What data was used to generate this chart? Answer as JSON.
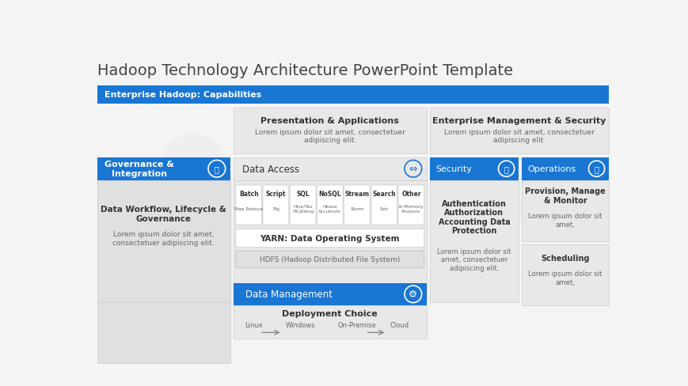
{
  "title": "Hadoop Technology Architecture PowerPoint Template",
  "blue": "#1976D2",
  "white": "#ffffff",
  "light_gray": "#e6e6e6",
  "text_dark": "#333333",
  "text_med": "#666666",
  "bg": "#f8f8f8",
  "top_bar_label": "Enterprise Hadoop: Capabilities",
  "pres_title": "Presentation & Applications",
  "pres_body": "Lorem ipsum dolor sit amet, consectetuer\nadipiscing elit.",
  "ent_title": "Enterprise Management & Security",
  "ent_body": "Lorem ipsum dolor sit amet, consectetuer\nadipiscing elit.",
  "gov_header": "Governance &\nIntegration",
  "gov_body_title": "Data Workflow, Lifecycle &\nGovernance",
  "gov_body_text": "Lorem ipsum dolor sit amet,\nconsectetuer adipiscing elit.",
  "da_header": "Data Access",
  "data_items": [
    {
      "title": "Batch",
      "sub": "Map Reduce"
    },
    {
      "title": "Script",
      "sub": "Pig"
    },
    {
      "title": "SQL",
      "sub": "Hive/Tez\nHCatalog"
    },
    {
      "title": "NoSQL",
      "sub": "Hbase\nAccumulo"
    },
    {
      "title": "Stream",
      "sub": "Storm"
    },
    {
      "title": "Search",
      "sub": "Solr"
    },
    {
      "title": "Other",
      "sub": "In-Memory\nAnalysis"
    }
  ],
  "yarn_label": "YARN: Data Operating System",
  "hdfs_label": "HDFS (Hadoop Distributed File System)",
  "dm_label": "Data Management",
  "sec_header": "Security",
  "sec_body_title": "Authentication\nAuthorization\nAccounting Data\nProtection",
  "sec_body_text": "Lorem ipsum dolor sit\namet, consectetuer\nadipiscing elit.",
  "ops_header": "Operations",
  "ops_item1_title": "Provision, Manage\n& Monitor",
  "ops_item1_text": "Lorem ipsum dolor sit\namet,",
  "ops_item2_title": "Scheduling",
  "ops_item2_text": "Lorem ipsum dolor sit\namet,",
  "deploy_title": "Deployment Choice",
  "deploy_items": [
    "Linux",
    "Windows",
    "On-Premise",
    "Cloud"
  ]
}
